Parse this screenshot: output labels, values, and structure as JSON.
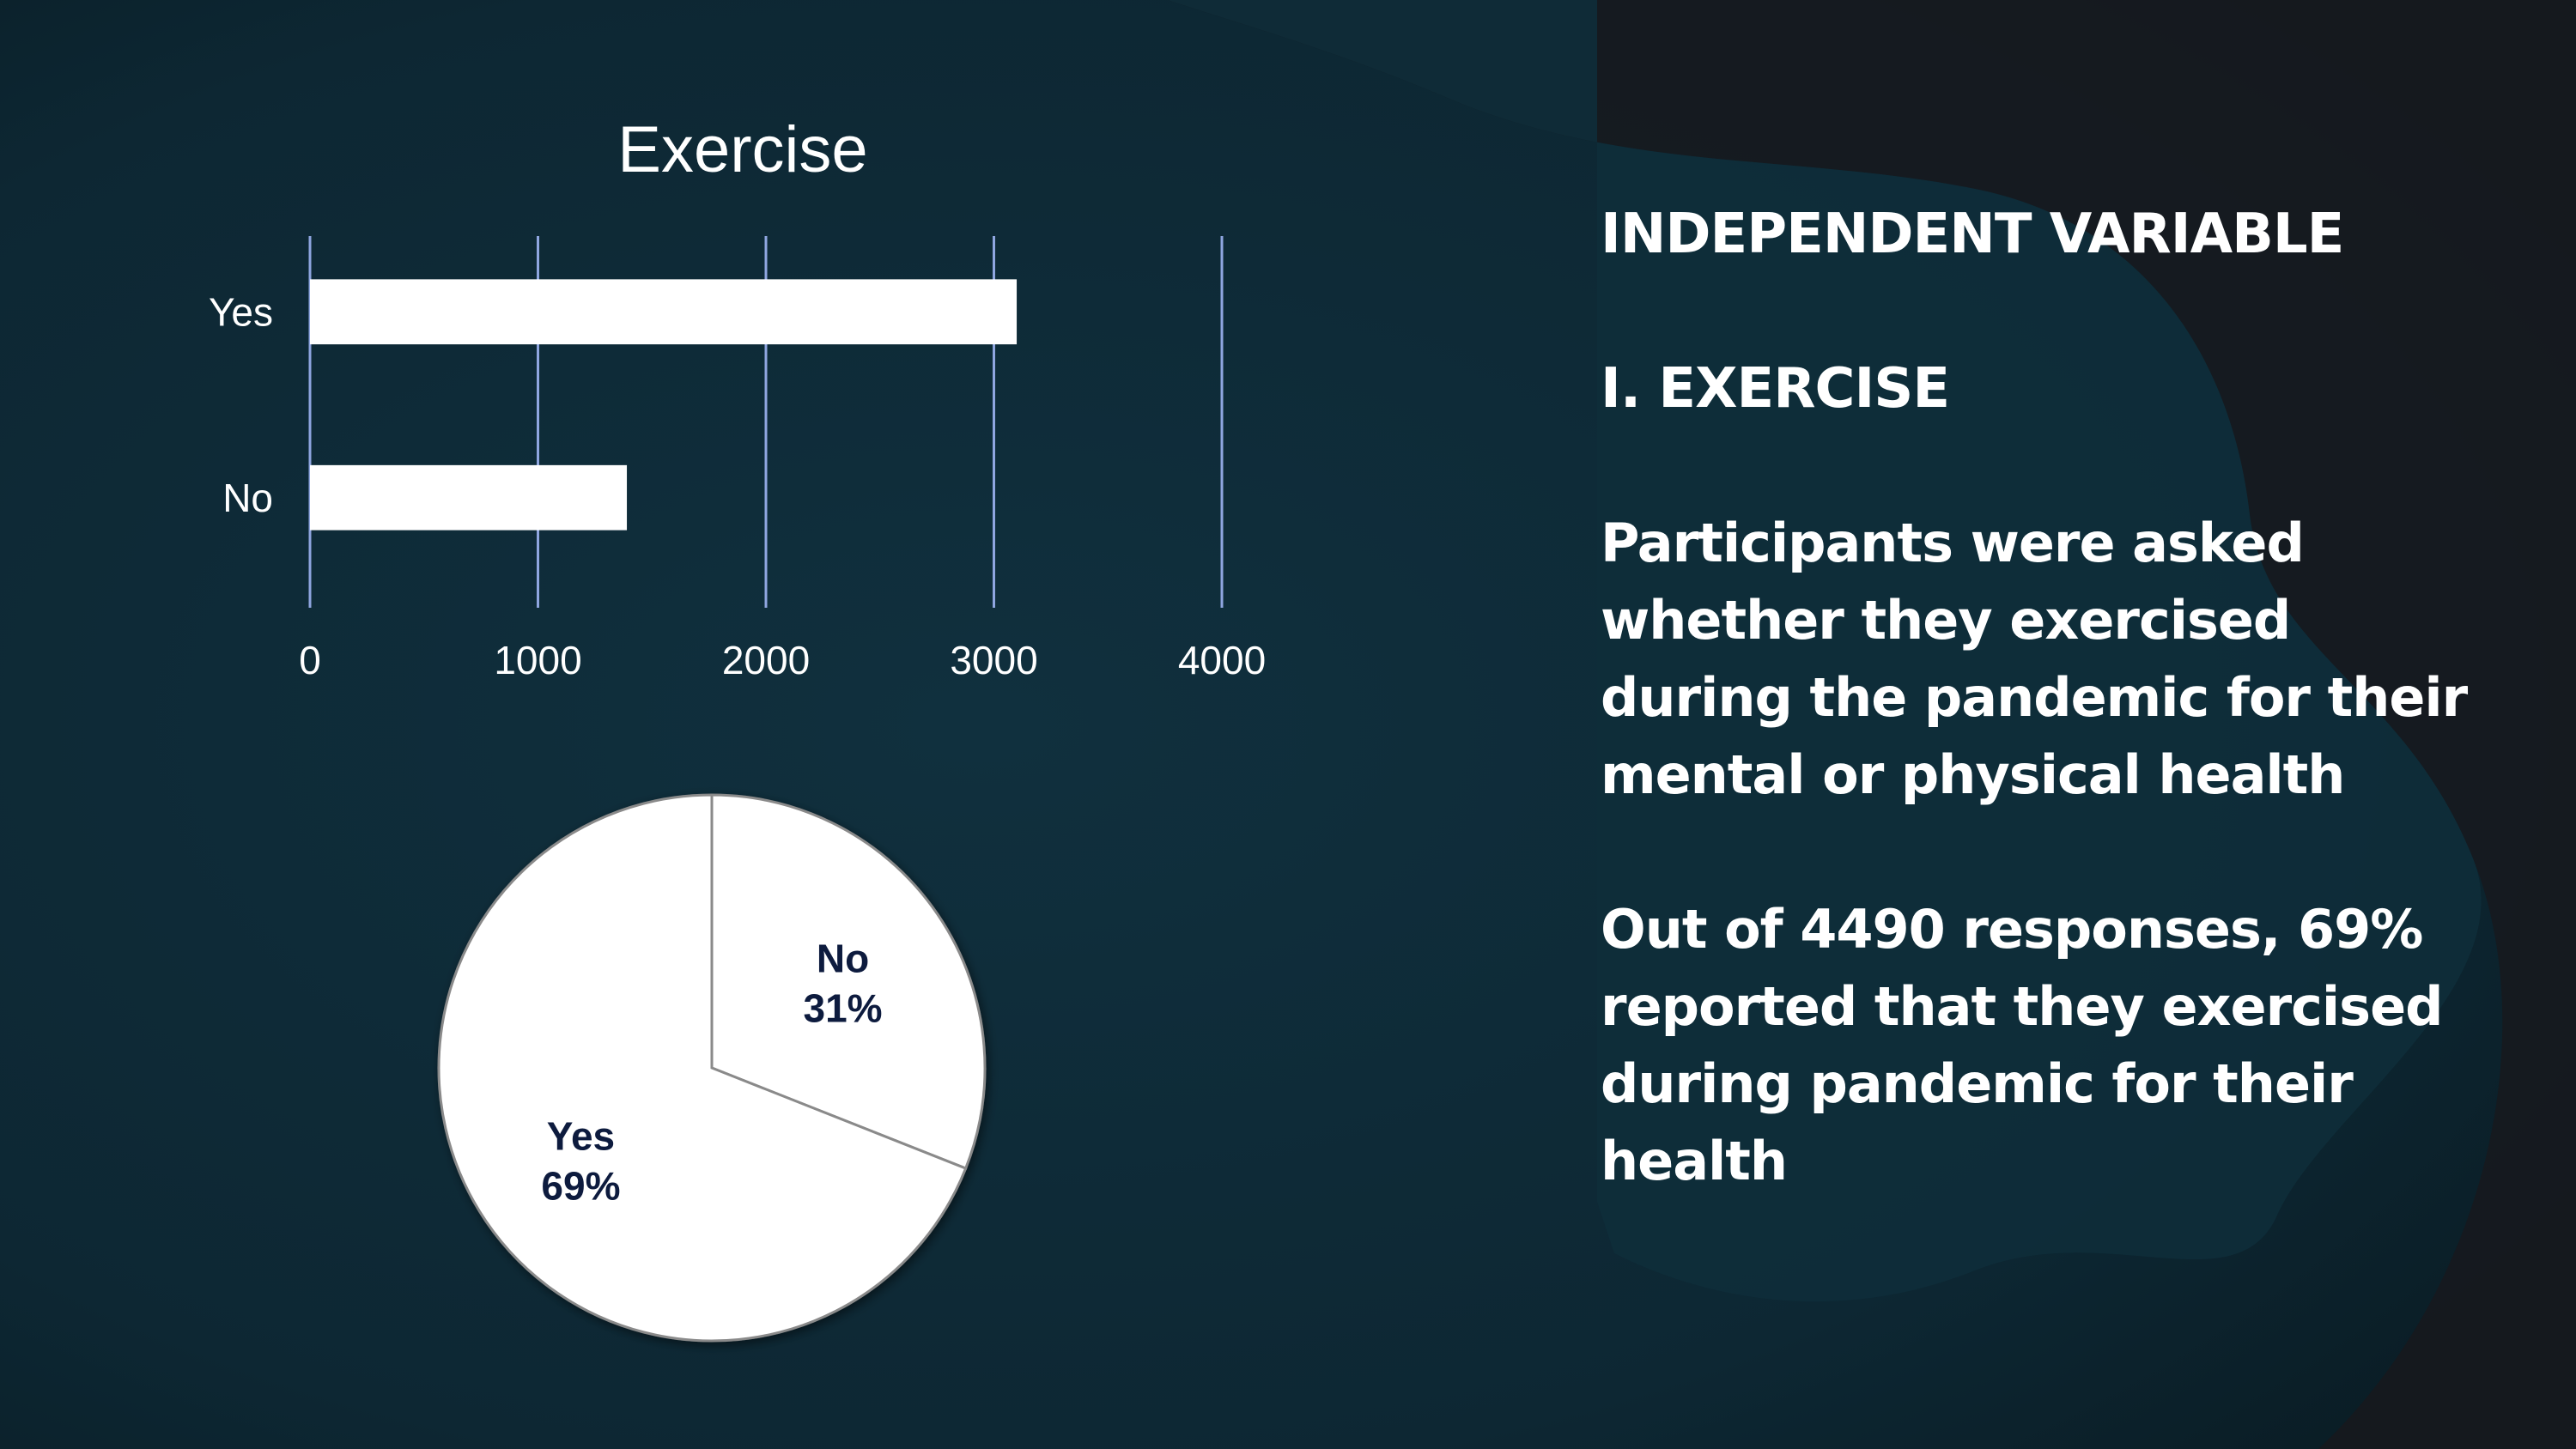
{
  "colors": {
    "background": "#0f2b38",
    "background_dark": "#16181c",
    "blob": "#0e2d3a",
    "bar_fill": "#ffffff",
    "gridline": "#8fa6e0",
    "pie_fill": "#ffffff",
    "pie_label": "#0d1b3e",
    "text": "#ffffff"
  },
  "chart_data": [
    {
      "type": "bar",
      "orientation": "horizontal",
      "title": "Exercise",
      "categories": [
        "Yes",
        "No"
      ],
      "values": [
        3100,
        1390
      ],
      "xlim": [
        0,
        4000
      ],
      "xticks": [
        "0",
        "1000",
        "2000",
        "3000",
        "4000"
      ],
      "grid": true,
      "legend": "none"
    },
    {
      "type": "pie",
      "slices": [
        {
          "label": "No",
          "percent_label": "31%",
          "value": 31
        },
        {
          "label": "Yes",
          "percent_label": "69%",
          "value": 69
        }
      ],
      "legend": "none"
    }
  ],
  "panel": {
    "heading1": "INDEPENDENT VARIABLE",
    "heading2": "I. EXERCISE",
    "paragraph1": "Participants were asked whether they exercised during the pandemic for their mental or physical health",
    "paragraph2": "Out of 4490 responses, 69% reported that they exercised during pandemic for their health"
  }
}
